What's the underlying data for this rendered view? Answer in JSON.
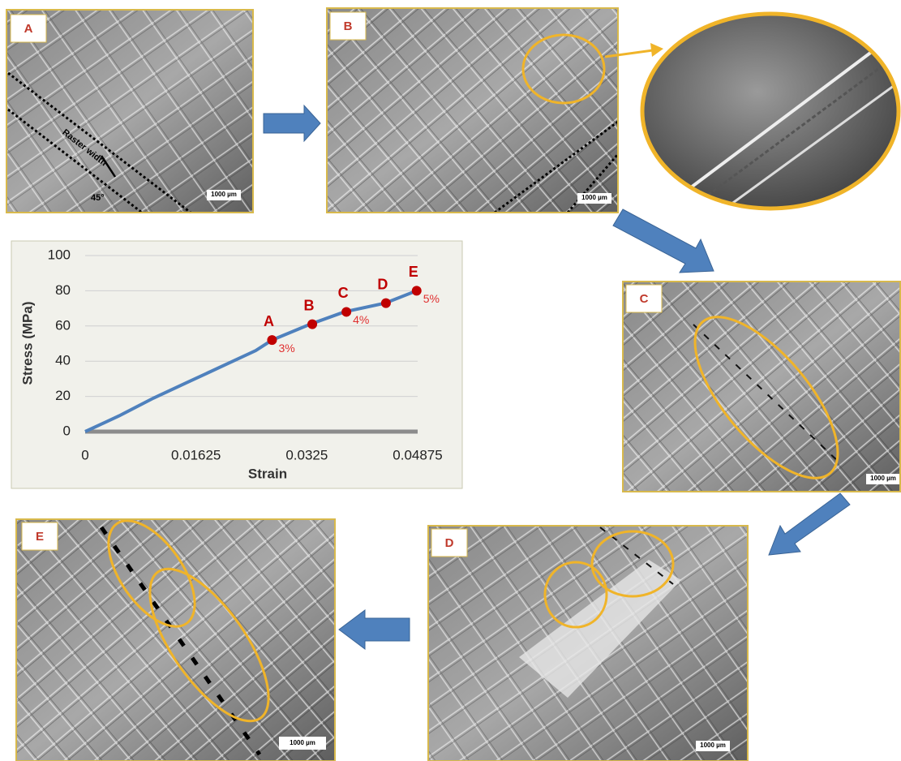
{
  "chart_data": {
    "type": "line",
    "x": [
      0,
      0.005,
      0.01,
      0.015,
      0.02,
      0.025,
      0.0274,
      0.033,
      0.038,
      0.044,
      0.0486
    ],
    "series": [
      {
        "color": "#4f81bd",
        "values": [
          0,
          9,
          19,
          28,
          37,
          46,
          52,
          61,
          68,
          73,
          80
        ]
      }
    ],
    "markers": {
      "labels": [
        "A",
        "B",
        "C",
        "D",
        "E"
      ],
      "x": [
        0.0274,
        0.0333,
        0.0383,
        0.0441,
        0.0486
      ],
      "values": [
        52,
        61,
        68,
        73,
        80
      ],
      "strain_labels": [
        "3%",
        null,
        "4%",
        null,
        "5%"
      ],
      "color": "#c00000"
    },
    "xlabel": "Strain",
    "ylabel": "Stress (MPa)",
    "xlim": [
      0,
      0.04875
    ],
    "xticks": [
      0,
      0.01625,
      0.0325,
      0.04875
    ],
    "ylim": [
      0,
      100
    ],
    "yticks": [
      0,
      20,
      40,
      60,
      80,
      100
    ],
    "grid": true
  },
  "panels": [
    {
      "label": "A",
      "scale_bar": "1000 µm",
      "raster": "Raster width",
      "angle": "45°"
    },
    {
      "label": "B",
      "scale_bar": "1000 µm"
    },
    {
      "label": "C",
      "scale_bar": "1000 µm"
    },
    {
      "label": "D",
      "scale_bar": "1000 µm"
    },
    {
      "label": "E",
      "scale_bar": "1000 µm"
    }
  ]
}
